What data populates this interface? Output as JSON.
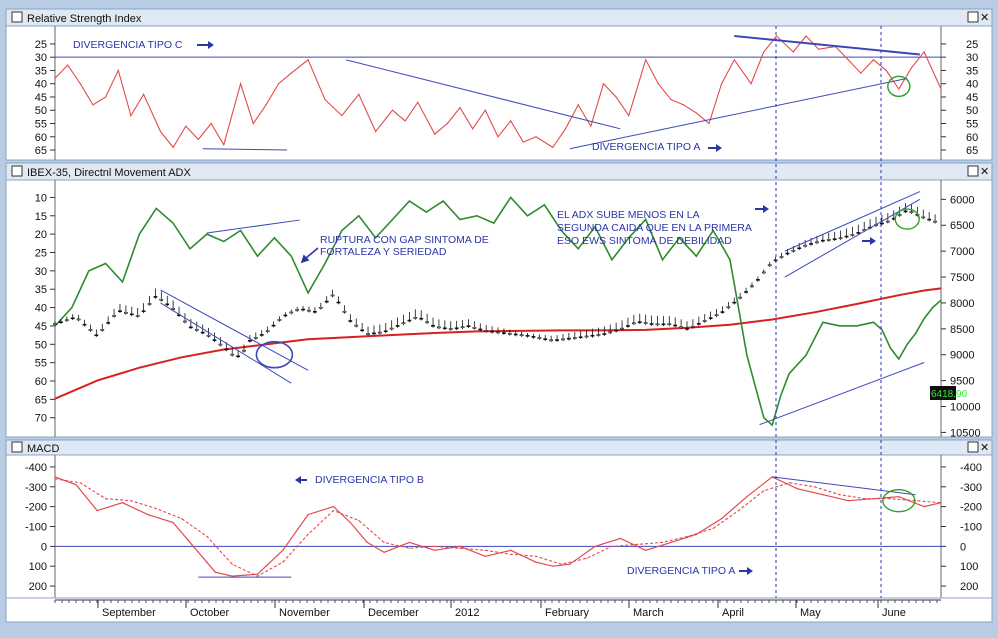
{
  "colors": {
    "frame": "#b8cde4",
    "plot_bg": "#ffffff",
    "axis_bg": "#ffffff",
    "rsi": "#e24b4b",
    "macd": "#e24b4b",
    "trend": "#3b49b8",
    "adx": "#2e8b2e",
    "ma": "#d82020",
    "annotation": "#2b35a8",
    "highlight": "#2ea02e",
    "price_label_bg": "#0f0f0f",
    "price_label_fg": "#39e639"
  },
  "panels": {
    "rsi": {
      "title": "Relative Strength Index"
    },
    "price": {
      "title": "IBEX-35, Directnl Movement ADX"
    },
    "macd": {
      "title": "MACD"
    }
  },
  "price_label": "6418.90",
  "annotations": {
    "rsi_c": "DIVERGENCIA TIPO C",
    "rsi_a": "DIVERGENCIA TIPO A",
    "gap_1": "RUPTURA CON GAP SINTOMA DE",
    "gap_2": "FORTALEZA Y SERIEDAD",
    "adx_1": "EL ADX SUBE MENOS EN LA",
    "adx_2": "SEGUNDA CAIDA QUE EN LA PRIMERA",
    "adx_3": "ESO EWS SINTOMA DE DEBILIDAD",
    "macd_b": "DIVERGENCIA TIPO B",
    "macd_a": "DIVERGENCIA TIPO A"
  },
  "x_axis": {
    "labels": [
      "September",
      "October",
      "November",
      "December",
      "2012",
      "February",
      "March",
      "April",
      "May",
      "June"
    ]
  },
  "chart_data": [
    {
      "type": "line",
      "title": "Relative Strength Index",
      "y_ticks": [
        65,
        60,
        55,
        50,
        45,
        40,
        35,
        30,
        25
      ],
      "ylim": [
        19,
        68
      ],
      "reference_line": 30,
      "x": [
        0,
        3,
        6,
        9,
        12,
        15,
        18,
        21,
        25,
        28,
        31,
        34,
        37,
        40,
        44,
        47,
        50,
        53,
        56,
        60,
        64,
        68,
        72,
        76,
        80,
        83,
        86,
        90,
        93,
        96,
        99,
        102,
        105,
        108,
        111,
        114,
        118,
        121,
        124,
        127,
        130,
        133,
        136,
        140,
        143,
        146,
        149,
        152,
        155,
        158,
        161,
        165,
        168,
        171,
        175,
        178,
        181,
        185,
        188,
        191,
        194,
        197,
        200,
        203,
        206,
        210
      ],
      "values": [
        38,
        33,
        40,
        48,
        45,
        35,
        52,
        44,
        58,
        64,
        56,
        61,
        55,
        63,
        40,
        55,
        48,
        40,
        36,
        31,
        46,
        52,
        44,
        58,
        50,
        54,
        47,
        59,
        55,
        49,
        57,
        50,
        60,
        54,
        62,
        60,
        64,
        57,
        48,
        56,
        40,
        45,
        52,
        31,
        40,
        46,
        48,
        51,
        55,
        40,
        31,
        40,
        28,
        22,
        28,
        22,
        27,
        26,
        31,
        36,
        31,
        35,
        42,
        34,
        28,
        42
      ]
    },
    {
      "type": "line",
      "title": "IBEX-35, Directnl Movement ADX",
      "left_ticks": [
        70,
        65,
        60,
        55,
        50,
        45,
        40,
        35,
        30,
        25,
        20,
        15,
        10
      ],
      "right_ticks": [
        10500,
        10000,
        9500,
        9000,
        8500,
        8000,
        7500,
        7000,
        6500,
        6000
      ],
      "left_lim": [
        5.8,
        74.7
      ],
      "right_lim": [
        5665,
        10550
      ],
      "series": [
        {
          "axis": "left",
          "x": [
            0,
            4,
            8,
            12,
            16,
            20,
            24,
            28,
            32,
            36,
            40,
            44,
            48,
            52,
            56,
            60,
            64,
            68,
            72,
            76,
            80,
            84,
            88,
            92,
            96,
            100,
            104,
            108,
            112,
            116,
            120,
            124,
            128,
            132,
            136,
            140,
            144,
            148,
            152,
            156,
            160,
            164,
            168,
            170,
            172,
            174,
            178,
            182,
            186,
            190,
            194,
            196,
            198,
            200,
            202,
            204,
            206,
            208,
            210
          ],
          "values": [
            45,
            40,
            30,
            28,
            33,
            20,
            13,
            17,
            24,
            20,
            22,
            19,
            26,
            21,
            26,
            36,
            28,
            19,
            15,
            21,
            16,
            11,
            14,
            11,
            16,
            15,
            17,
            10,
            15,
            12,
            19,
            24,
            18,
            27,
            21,
            16,
            27,
            21,
            26,
            19,
            27,
            53,
            70,
            72,
            64,
            58,
            53,
            44,
            45,
            45,
            44,
            46,
            51,
            54,
            50,
            47,
            43,
            40,
            38
          ]
        },
        {
          "axis": "right",
          "x": [
            0,
            10,
            20,
            30,
            40,
            50,
            60,
            70,
            80,
            90,
            100,
            110,
            120,
            130,
            140,
            150,
            160,
            170,
            180,
            190,
            200,
            206,
            210
          ],
          "values": [
            9850,
            9500,
            9250,
            9050,
            8900,
            8800,
            8700,
            8660,
            8620,
            8580,
            8550,
            8540,
            8530,
            8530,
            8520,
            8480,
            8420,
            8320,
            8180,
            8020,
            7850,
            7760,
            7720
          ]
        },
        {
          "axis": "right",
          "x": [
            0,
            5,
            10,
            15,
            20,
            24,
            28,
            32,
            36,
            40,
            42,
            44,
            46,
            50,
            54,
            58,
            62,
            66,
            70,
            74,
            78,
            82,
            86,
            90,
            94,
            98,
            102,
            106,
            110,
            114,
            118,
            122,
            126,
            130,
            134,
            138,
            142,
            146,
            150,
            154,
            158,
            162,
            166,
            170,
            174,
            178,
            182,
            186,
            190,
            194,
            198,
            202,
            206,
            210
          ],
          "values": [
            8400,
            8250,
            8600,
            8100,
            8200,
            7800,
            8050,
            8400,
            8550,
            8800,
            8950,
            9000,
            8700,
            8550,
            8250,
            8100,
            8150,
            7800,
            8300,
            8550,
            8500,
            8350,
            8200,
            8400,
            8450,
            8400,
            8500,
            8550,
            8600,
            8650,
            8700,
            8650,
            8600,
            8550,
            8450,
            8300,
            8350,
            8350,
            8450,
            8300,
            8150,
            7900,
            7600,
            7200,
            7000,
            6850,
            6750,
            6700,
            6600,
            6450,
            6350,
            6150,
            6300,
            6420
          ]
        }
      ]
    },
    {
      "type": "line",
      "title": "MACD",
      "y_ticks": [
        200,
        100,
        0,
        -100,
        -200,
        -300,
        -400
      ],
      "ylim": [
        -450,
        250
      ],
      "reference_line": 0,
      "series": [
        {
          "x": [
            0,
            5,
            10,
            16,
            22,
            28,
            34,
            38,
            42,
            48,
            54,
            60,
            66,
            70,
            74,
            78,
            84,
            90,
            96,
            102,
            108,
            114,
            118,
            122,
            128,
            134,
            140,
            146,
            152,
            158,
            164,
            170,
            176,
            182,
            188,
            194,
            200,
            206,
            210
          ],
          "values": [
            -350,
            -310,
            -180,
            -220,
            -160,
            -120,
            30,
            130,
            150,
            140,
            20,
            -160,
            -200,
            -120,
            -20,
            30,
            -20,
            20,
            0,
            50,
            20,
            80,
            100,
            90,
            0,
            -40,
            20,
            -20,
            -60,
            -140,
            -250,
            -350,
            -290,
            -260,
            -230,
            -240,
            -250,
            -200,
            -220
          ]
        },
        {
          "x": [
            0,
            6,
            12,
            18,
            24,
            30,
            36,
            42,
            48,
            54,
            60,
            66,
            72,
            78,
            84,
            90,
            96,
            102,
            108,
            114,
            120,
            126,
            132,
            138,
            144,
            150,
            156,
            162,
            168,
            174,
            180,
            186,
            192,
            198,
            204,
            210
          ],
          "values": [
            -340,
            -320,
            -240,
            -230,
            -190,
            -140,
            -50,
            90,
            150,
            80,
            -60,
            -180,
            -130,
            -20,
            10,
            0,
            10,
            20,
            40,
            50,
            90,
            60,
            0,
            -10,
            -20,
            -50,
            -90,
            -180,
            -280,
            -320,
            -300,
            -260,
            -240,
            -240,
            -230,
            -220
          ]
        }
      ]
    }
  ]
}
